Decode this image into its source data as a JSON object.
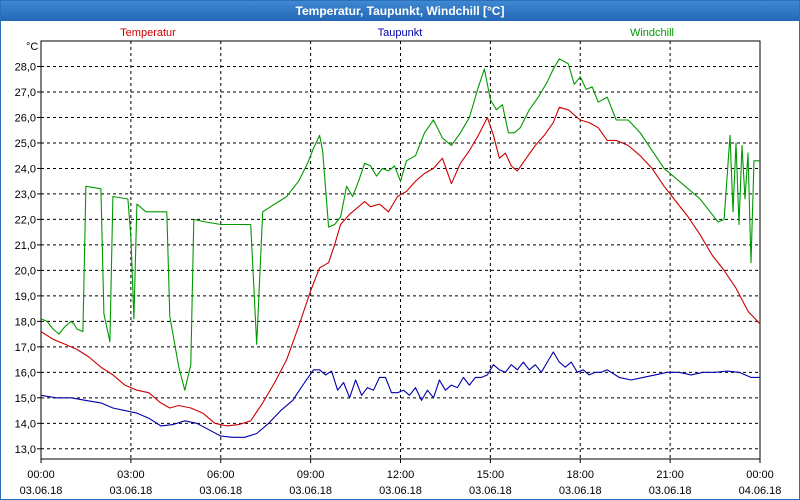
{
  "window": {
    "title": "Temperatur, Taupunkt, Windchill [°C]"
  },
  "chart_data": {
    "type": "line",
    "title": "Temperatur, Taupunkt, Windchill [°C]",
    "ylabel": "°C",
    "ylim": [
      12.6,
      29.0
    ],
    "xlim": [
      0,
      24
    ],
    "grid": true,
    "legend": [
      "Temperatur",
      "Taupunkt",
      "Windchill"
    ],
    "yticks": [
      "13,0",
      "14,0",
      "15,0",
      "16,0",
      "17,0",
      "18,0",
      "19,0",
      "20,0",
      "21,0",
      "22,0",
      "23,0",
      "24,0",
      "25,0",
      "26,0",
      "27,0",
      "28,0"
    ],
    "xticks": [
      {
        "time": "00:00",
        "date": "03.06.18"
      },
      {
        "time": "03:00",
        "date": "03.06.18"
      },
      {
        "time": "06:00",
        "date": "03.06.18"
      },
      {
        "time": "09:00",
        "date": "03.06.18"
      },
      {
        "time": "12:00",
        "date": "03.06.18"
      },
      {
        "time": "15:00",
        "date": "03.06.18"
      },
      {
        "time": "18:00",
        "date": "03.06.18"
      },
      {
        "time": "21:00",
        "date": "03.06.18"
      },
      {
        "time": "00:00",
        "date": "04.06.18"
      }
    ],
    "series": [
      {
        "name": "Temperatur",
        "color": "#cc0000",
        "points": [
          [
            0,
            17.6
          ],
          [
            0.4,
            17.3
          ],
          [
            0.8,
            17.1
          ],
          [
            1.2,
            16.9
          ],
          [
            1.6,
            16.6
          ],
          [
            2.0,
            16.2
          ],
          [
            2.4,
            15.9
          ],
          [
            2.8,
            15.5
          ],
          [
            3.2,
            15.3
          ],
          [
            3.6,
            15.2
          ],
          [
            4.0,
            14.8
          ],
          [
            4.3,
            14.6
          ],
          [
            4.6,
            14.7
          ],
          [
            5.0,
            14.6
          ],
          [
            5.4,
            14.4
          ],
          [
            5.8,
            14.0
          ],
          [
            6.2,
            13.9
          ],
          [
            6.6,
            13.95
          ],
          [
            7.0,
            14.1
          ],
          [
            7.4,
            14.8
          ],
          [
            7.8,
            15.6
          ],
          [
            8.2,
            16.5
          ],
          [
            8.6,
            17.8
          ],
          [
            9.0,
            19.2
          ],
          [
            9.3,
            20.1
          ],
          [
            9.6,
            20.3
          ],
          [
            9.8,
            21.0
          ],
          [
            10.0,
            21.8
          ],
          [
            10.3,
            22.2
          ],
          [
            10.6,
            22.5
          ],
          [
            10.8,
            22.7
          ],
          [
            11.0,
            22.5
          ],
          [
            11.3,
            22.6
          ],
          [
            11.6,
            22.3
          ],
          [
            11.9,
            22.9
          ],
          [
            12.2,
            23.1
          ],
          [
            12.5,
            23.5
          ],
          [
            12.8,
            23.8
          ],
          [
            13.1,
            24.0
          ],
          [
            13.4,
            24.4
          ],
          [
            13.7,
            23.4
          ],
          [
            14.0,
            24.2
          ],
          [
            14.3,
            24.7
          ],
          [
            14.6,
            25.3
          ],
          [
            14.9,
            26.0
          ],
          [
            15.1,
            25.3
          ],
          [
            15.3,
            24.4
          ],
          [
            15.5,
            24.6
          ],
          [
            15.7,
            24.1
          ],
          [
            15.9,
            23.9
          ],
          [
            16.2,
            24.4
          ],
          [
            16.5,
            24.9
          ],
          [
            16.8,
            25.3
          ],
          [
            17.1,
            25.8
          ],
          [
            17.3,
            26.4
          ],
          [
            17.6,
            26.3
          ],
          [
            17.8,
            26.1
          ],
          [
            18.0,
            25.9
          ],
          [
            18.3,
            25.8
          ],
          [
            18.6,
            25.6
          ],
          [
            18.9,
            25.1
          ],
          [
            19.2,
            25.1
          ],
          [
            19.6,
            24.9
          ],
          [
            20.0,
            24.5
          ],
          [
            20.4,
            24.0
          ],
          [
            20.8,
            23.3
          ],
          [
            21.2,
            22.7
          ],
          [
            21.6,
            22.1
          ],
          [
            22.0,
            21.4
          ],
          [
            22.4,
            20.6
          ],
          [
            22.8,
            20.0
          ],
          [
            23.2,
            19.3
          ],
          [
            23.6,
            18.4
          ],
          [
            24.0,
            17.9
          ]
        ]
      },
      {
        "name": "Taupunkt",
        "color": "#0000aa",
        "points": [
          [
            0,
            15.1
          ],
          [
            0.5,
            15.0
          ],
          [
            1.0,
            15.0
          ],
          [
            1.5,
            14.9
          ],
          [
            2.0,
            14.8
          ],
          [
            2.4,
            14.6
          ],
          [
            2.8,
            14.5
          ],
          [
            3.2,
            14.4
          ],
          [
            3.6,
            14.2
          ],
          [
            4.0,
            13.9
          ],
          [
            4.4,
            13.95
          ],
          [
            4.8,
            14.1
          ],
          [
            5.2,
            14.0
          ],
          [
            5.6,
            13.75
          ],
          [
            6.0,
            13.5
          ],
          [
            6.4,
            13.45
          ],
          [
            6.8,
            13.45
          ],
          [
            7.2,
            13.6
          ],
          [
            7.6,
            14.0
          ],
          [
            8.0,
            14.5
          ],
          [
            8.4,
            14.9
          ],
          [
            8.8,
            15.6
          ],
          [
            9.1,
            16.1
          ],
          [
            9.3,
            16.1
          ],
          [
            9.5,
            15.9
          ],
          [
            9.7,
            16.05
          ],
          [
            9.9,
            15.3
          ],
          [
            10.1,
            15.6
          ],
          [
            10.3,
            15.0
          ],
          [
            10.5,
            15.7
          ],
          [
            10.7,
            15.1
          ],
          [
            10.9,
            15.4
          ],
          [
            11.1,
            15.3
          ],
          [
            11.3,
            15.8
          ],
          [
            11.5,
            15.8
          ],
          [
            11.7,
            15.2
          ],
          [
            11.9,
            15.2
          ],
          [
            12.1,
            15.3
          ],
          [
            12.3,
            15.1
          ],
          [
            12.5,
            15.4
          ],
          [
            12.7,
            14.9
          ],
          [
            12.9,
            15.3
          ],
          [
            13.1,
            15.0
          ],
          [
            13.3,
            15.7
          ],
          [
            13.5,
            15.3
          ],
          [
            13.7,
            15.5
          ],
          [
            13.9,
            15.4
          ],
          [
            14.1,
            15.8
          ],
          [
            14.3,
            15.5
          ],
          [
            14.5,
            15.8
          ],
          [
            14.7,
            15.8
          ],
          [
            14.9,
            15.9
          ],
          [
            15.1,
            16.3
          ],
          [
            15.3,
            16.1
          ],
          [
            15.5,
            16.0
          ],
          [
            15.7,
            16.3
          ],
          [
            15.9,
            16.1
          ],
          [
            16.1,
            16.4
          ],
          [
            16.3,
            16.1
          ],
          [
            16.5,
            16.3
          ],
          [
            16.7,
            16.0
          ],
          [
            16.9,
            16.4
          ],
          [
            17.1,
            16.8
          ],
          [
            17.3,
            16.4
          ],
          [
            17.5,
            16.2
          ],
          [
            17.7,
            16.4
          ],
          [
            17.9,
            16.0
          ],
          [
            18.1,
            16.1
          ],
          [
            18.3,
            15.9
          ],
          [
            18.5,
            16.0
          ],
          [
            18.7,
            16.0
          ],
          [
            18.9,
            16.1
          ],
          [
            19.3,
            15.8
          ],
          [
            19.7,
            15.7
          ],
          [
            20.1,
            15.8
          ],
          [
            20.5,
            15.9
          ],
          [
            20.9,
            16.0
          ],
          [
            21.3,
            16.0
          ],
          [
            21.7,
            15.9
          ],
          [
            22.1,
            16.0
          ],
          [
            22.5,
            16.0
          ],
          [
            22.9,
            16.05
          ],
          [
            23.3,
            16.0
          ],
          [
            23.7,
            15.8
          ],
          [
            24.0,
            15.8
          ]
        ]
      },
      {
        "name": "Windchill",
        "color": "#009900",
        "points": [
          [
            0,
            18.1
          ],
          [
            0.2,
            18.0
          ],
          [
            0.4,
            17.7
          ],
          [
            0.6,
            17.5
          ],
          [
            0.8,
            17.8
          ],
          [
            1.0,
            18.0
          ],
          [
            1.1,
            17.9
          ],
          [
            1.2,
            17.7
          ],
          [
            1.4,
            17.6
          ],
          [
            1.5,
            23.3
          ],
          [
            2.0,
            23.2
          ],
          [
            2.1,
            18.3
          ],
          [
            2.3,
            17.2
          ],
          [
            2.4,
            22.9
          ],
          [
            2.9,
            22.8
          ],
          [
            3.0,
            21.3
          ],
          [
            3.1,
            18.1
          ],
          [
            3.2,
            22.6
          ],
          [
            3.5,
            22.3
          ],
          [
            4.0,
            22.3
          ],
          [
            4.2,
            22.3
          ],
          [
            4.3,
            18.2
          ],
          [
            4.6,
            16.2
          ],
          [
            4.8,
            15.3
          ],
          [
            5.0,
            16.3
          ],
          [
            5.1,
            22.0
          ],
          [
            5.5,
            21.9
          ],
          [
            6.0,
            21.8
          ],
          [
            6.5,
            21.8
          ],
          [
            7.0,
            21.8
          ],
          [
            7.2,
            17.1
          ],
          [
            7.4,
            22.3
          ],
          [
            7.8,
            22.6
          ],
          [
            8.2,
            22.9
          ],
          [
            8.6,
            23.5
          ],
          [
            8.9,
            24.2
          ],
          [
            9.1,
            24.8
          ],
          [
            9.3,
            25.3
          ],
          [
            9.4,
            24.7
          ],
          [
            9.6,
            21.7
          ],
          [
            9.8,
            21.8
          ],
          [
            10.0,
            22.1
          ],
          [
            10.2,
            23.3
          ],
          [
            10.4,
            22.9
          ],
          [
            10.6,
            23.5
          ],
          [
            10.8,
            24.2
          ],
          [
            11.0,
            24.1
          ],
          [
            11.2,
            23.7
          ],
          [
            11.4,
            24.0
          ],
          [
            11.6,
            23.9
          ],
          [
            11.8,
            24.1
          ],
          [
            12.0,
            23.5
          ],
          [
            12.2,
            24.3
          ],
          [
            12.5,
            24.5
          ],
          [
            12.8,
            25.4
          ],
          [
            13.1,
            25.9
          ],
          [
            13.4,
            25.2
          ],
          [
            13.7,
            24.9
          ],
          [
            14.0,
            25.4
          ],
          [
            14.3,
            26.0
          ],
          [
            14.6,
            27.2
          ],
          [
            14.8,
            27.9
          ],
          [
            15.0,
            26.7
          ],
          [
            15.2,
            26.3
          ],
          [
            15.4,
            26.5
          ],
          [
            15.6,
            25.4
          ],
          [
            15.8,
            25.4
          ],
          [
            16.0,
            25.6
          ],
          [
            16.3,
            26.3
          ],
          [
            16.6,
            26.8
          ],
          [
            16.9,
            27.4
          ],
          [
            17.1,
            27.9
          ],
          [
            17.3,
            28.3
          ],
          [
            17.6,
            28.1
          ],
          [
            17.8,
            27.3
          ],
          [
            18.0,
            27.6
          ],
          [
            18.2,
            27.1
          ],
          [
            18.4,
            27.2
          ],
          [
            18.6,
            26.6
          ],
          [
            18.9,
            26.8
          ],
          [
            19.2,
            25.9
          ],
          [
            19.6,
            25.9
          ],
          [
            20.0,
            25.4
          ],
          [
            20.4,
            24.7
          ],
          [
            20.8,
            24.0
          ],
          [
            21.2,
            23.6
          ],
          [
            21.6,
            23.2
          ],
          [
            22.0,
            22.8
          ],
          [
            22.4,
            22.2
          ],
          [
            22.6,
            21.9
          ],
          [
            22.8,
            22.0
          ],
          [
            23.0,
            25.3
          ],
          [
            23.1,
            22.3
          ],
          [
            23.2,
            25.0
          ],
          [
            23.3,
            21.8
          ],
          [
            23.4,
            24.9
          ],
          [
            23.5,
            22.8
          ],
          [
            23.6,
            24.6
          ],
          [
            23.7,
            20.3
          ],
          [
            23.8,
            24.3
          ],
          [
            24.0,
            24.3
          ]
        ]
      }
    ]
  }
}
